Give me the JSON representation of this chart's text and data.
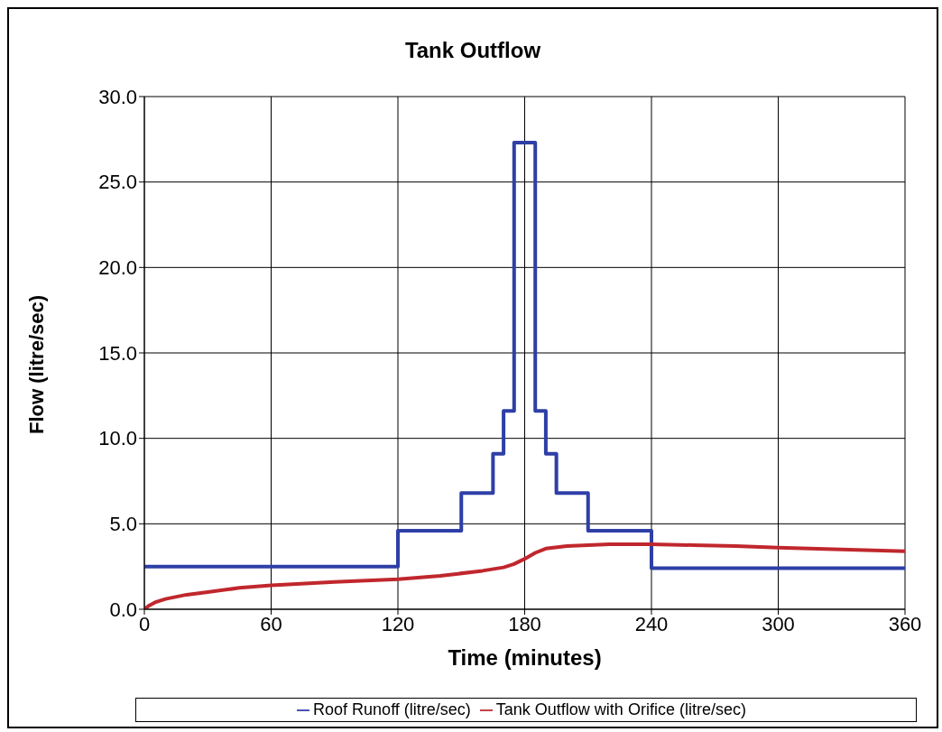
{
  "chart_data": {
    "type": "line",
    "title": "Tank Outflow",
    "xlabel": "Time (minutes)",
    "ylabel": "Flow (litre/sec)",
    "xlim": [
      0,
      360
    ],
    "xticks": [
      0,
      60,
      120,
      180,
      240,
      300,
      360
    ],
    "ylim": [
      0,
      30
    ],
    "yticks": [
      {
        "value": 0,
        "label": "0.0"
      },
      {
        "value": 5,
        "label": "5.0"
      },
      {
        "value": 10,
        "label": "10.0"
      },
      {
        "value": 15,
        "label": "15.0"
      },
      {
        "value": 20,
        "label": "20.0"
      },
      {
        "value": 25,
        "label": "25.0"
      },
      {
        "value": 30,
        "label": "30.0"
      }
    ],
    "grid": true,
    "legend": "bottom",
    "marker": "none",
    "line_style": "solid",
    "series": [
      {
        "name": "Roof Runoff (litre/sec)",
        "type": "step",
        "color": "#2e3fa6",
        "x": [
          0,
          120,
          150,
          165,
          170,
          175,
          185,
          190,
          195,
          210,
          240,
          360
        ],
        "values": [
          2.5,
          4.6,
          6.8,
          9.1,
          11.6,
          27.3,
          11.6,
          9.1,
          6.8,
          4.6,
          2.4,
          2.4
        ]
      },
      {
        "name": "Tank Outflow with Orifice (litre/sec)",
        "color": "#c0272d",
        "x": [
          0,
          2,
          5,
          10,
          20,
          30,
          45,
          60,
          90,
          120,
          140,
          160,
          170,
          175,
          180,
          185,
          190,
          200,
          220,
          240,
          260,
          280,
          300,
          330,
          360
        ],
        "values": [
          0,
          0.2,
          0.4,
          0.6,
          0.85,
          1.0,
          1.25,
          1.4,
          1.6,
          1.75,
          1.95,
          2.25,
          2.45,
          2.65,
          2.95,
          3.3,
          3.55,
          3.7,
          3.8,
          3.8,
          3.75,
          3.7,
          3.6,
          3.5,
          3.4
        ]
      }
    ]
  }
}
